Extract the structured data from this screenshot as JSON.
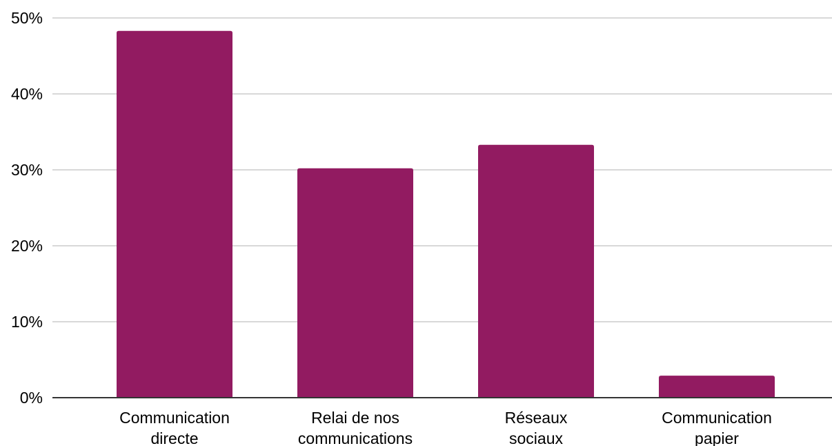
{
  "chart_data": {
    "type": "bar",
    "categories": [
      [
        "Communication",
        "directe"
      ],
      [
        "Relai de nos",
        "communications"
      ],
      [
        "Réseaux",
        "sociaux"
      ],
      [
        "Communication",
        "papier"
      ]
    ],
    "values": [
      48.3,
      30.2,
      33.3,
      2.9
    ],
    "title": "",
    "xlabel": "",
    "ylabel": "",
    "ylim": [
      0,
      50
    ],
    "yticks": [
      0,
      10,
      20,
      30,
      40,
      50
    ],
    "ytick_labels": [
      "0%",
      "10%",
      "20%",
      "30%",
      "40%",
      "50%"
    ],
    "grid": true,
    "legend": "none",
    "bar_color": "#921B61",
    "grid_color": "#cccccc",
    "axis_color": "#333333"
  }
}
